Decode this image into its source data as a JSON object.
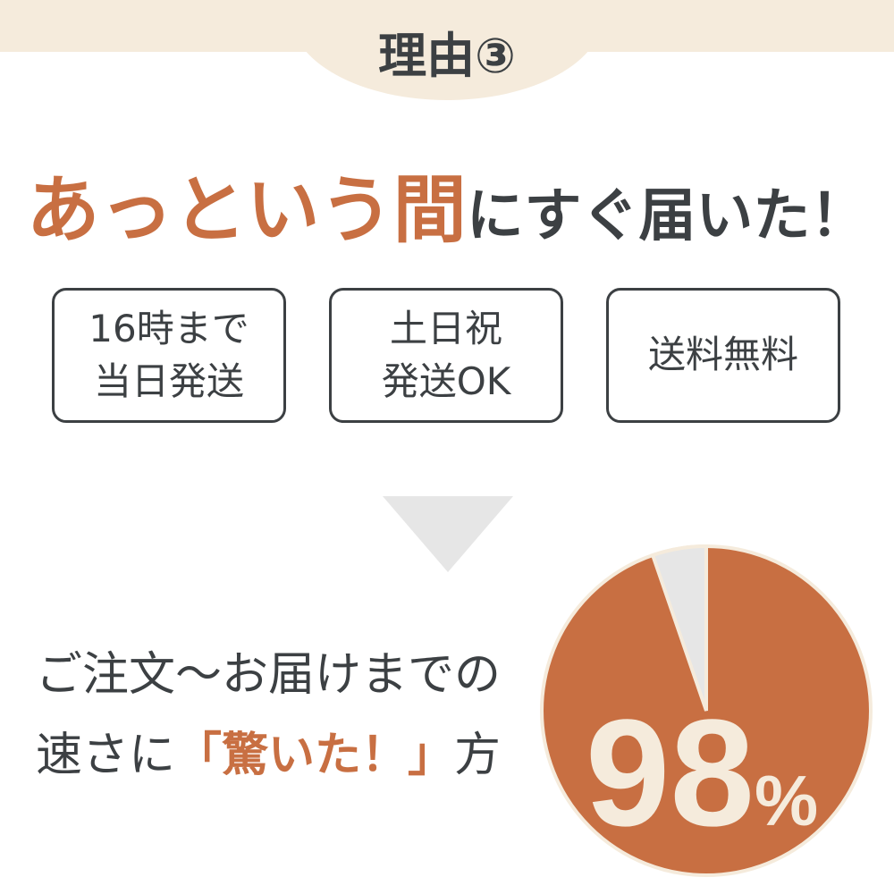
{
  "header": {
    "reason": "理由③"
  },
  "headline": {
    "part1": "あっという",
    "part2": "間",
    "part3": "にすぐ届いた！"
  },
  "features": [
    "16時まで\n当日発送",
    "土日祝\n発送OK",
    "送料無料"
  ],
  "statement": {
    "line1": "ご注文〜お届けまでの",
    "line2_prefix": "速さに",
    "line2_accent": "「驚いた！」",
    "line2_suffix": "方"
  },
  "pie": {
    "value": 98,
    "label_number": "98",
    "label_unit": "%"
  },
  "colors": {
    "accent": "#c86f42",
    "text": "#3c4043",
    "beige": "#f5ebdc",
    "gray": "#e6e6e6"
  }
}
